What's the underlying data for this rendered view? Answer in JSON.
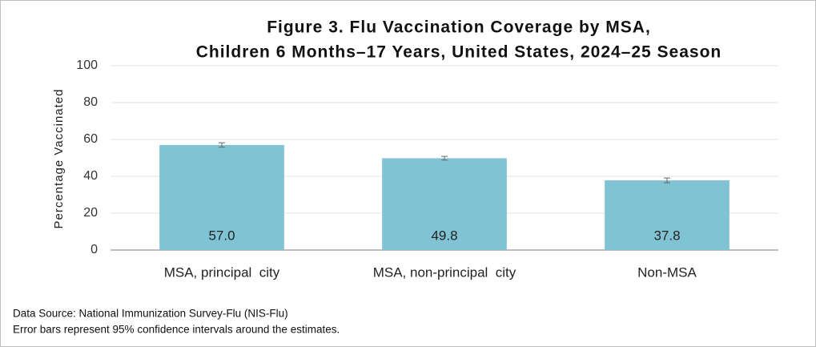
{
  "chart_data": {
    "type": "bar",
    "title": [
      "Figure 3. Flu Vaccination Coverage by MSA,",
      "Children 6 Months–17 Years, United States, 2024–25 Season"
    ],
    "y_label": "Percentage Vaccinated",
    "categories": [
      "MSA, principal  city",
      "MSA, non-principal  city",
      "Non-MSA"
    ],
    "values": [
      57.0,
      49.8,
      37.8
    ],
    "value_labels": [
      "57.0",
      "49.8",
      "37.8"
    ],
    "errors": [
      1.2,
      1.0,
      1.3
    ],
    "color": "#7fc3d4",
    "ylim": [
      0,
      100
    ],
    "yticks": [
      0,
      20,
      40,
      60,
      80,
      100
    ],
    "grid": true,
    "notes": [
      "Data Source: National Immunization Survey-Flu (NIS-Flu)",
      "Error bars represent 95% confidence intervals around the estimates."
    ]
  }
}
